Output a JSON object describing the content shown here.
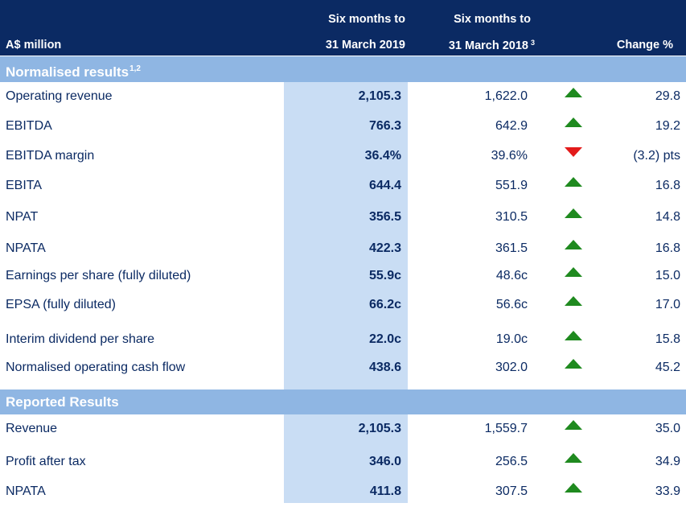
{
  "header": {
    "unit_label": "A$ million",
    "col1_line1": "Six months to",
    "col1_line2": "31 March 2019",
    "col2_line1": "Six months to",
    "col2_line2": "31 March 2018",
    "col2_footnote": "3",
    "col3": "Change %"
  },
  "sections": [
    {
      "title": "Normalised results",
      "footnote": "1,2"
    },
    {
      "title": "Reported Results",
      "footnote": ""
    }
  ],
  "normalised_rows": [
    {
      "label": "Operating revenue",
      "v2019": "2,105.3",
      "v2018": "1,622.0",
      "direction": "up",
      "change": "29.8"
    },
    {
      "label": "EBITDA",
      "v2019": "766.3",
      "v2018": "642.9",
      "direction": "up",
      "change": "19.2"
    },
    {
      "label": "EBITDA margin",
      "v2019": "36.4%",
      "v2018": "39.6%",
      "direction": "down",
      "change": "(3.2) pts"
    },
    {
      "label": "EBITA",
      "v2019": "644.4",
      "v2018": "551.9",
      "direction": "up",
      "change": "16.8"
    },
    {
      "label": "NPAT",
      "v2019": "356.5",
      "v2018": "310.5",
      "direction": "up",
      "change": "14.8"
    },
    {
      "label": "NPATA",
      "v2019": "422.3",
      "v2018": "361.5",
      "direction": "up",
      "change": "16.8"
    },
    {
      "label": "Earnings per share (fully diluted)",
      "v2019": "55.9c",
      "v2018": "48.6c",
      "direction": "up",
      "change": "15.0"
    },
    {
      "label": "EPSA (fully diluted)",
      "v2019": "66.2c",
      "v2018": "56.6c",
      "direction": "up",
      "change": "17.0"
    },
    {
      "label": "Interim dividend per share",
      "v2019": "22.0c",
      "v2018": "19.0c",
      "direction": "up",
      "change": "15.8"
    },
    {
      "label": "Normalised operating cash flow",
      "v2019": "438.6",
      "v2018": "302.0",
      "direction": "up",
      "change": "45.2"
    }
  ],
  "reported_rows": [
    {
      "label": "Revenue",
      "v2019": "2,105.3",
      "v2018": "1,559.7",
      "direction": "up",
      "change": "35.0"
    },
    {
      "label": "Profit after tax",
      "v2019": "346.0",
      "v2018": "256.5",
      "direction": "up",
      "change": "34.9"
    },
    {
      "label": "NPATA",
      "v2019": "411.8",
      "v2018": "307.5",
      "direction": "up",
      "change": "33.9"
    }
  ],
  "colors": {
    "header_bg": "#0b2a63",
    "section_bg": "#8fb6e3",
    "highlight_col": "#c9ddf4",
    "text": "#0b2a63",
    "up_arrow": "#1f8a1f",
    "down_arrow": "#e31b1b"
  },
  "icons": {
    "up": "triangle-up-icon",
    "down": "triangle-down-icon"
  }
}
